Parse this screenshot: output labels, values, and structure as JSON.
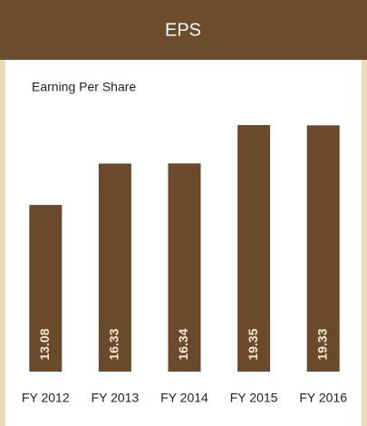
{
  "chart_data": {
    "type": "bar",
    "title": "EPS",
    "subtitle": "Earning Per Share",
    "categories": [
      "FY 2012",
      "FY 2013",
      "FY 2014",
      "FY 2015",
      "FY 2016"
    ],
    "values": [
      13.08,
      16.33,
      16.34,
      19.35,
      19.33
    ],
    "color": "#6b4a2b"
  }
}
